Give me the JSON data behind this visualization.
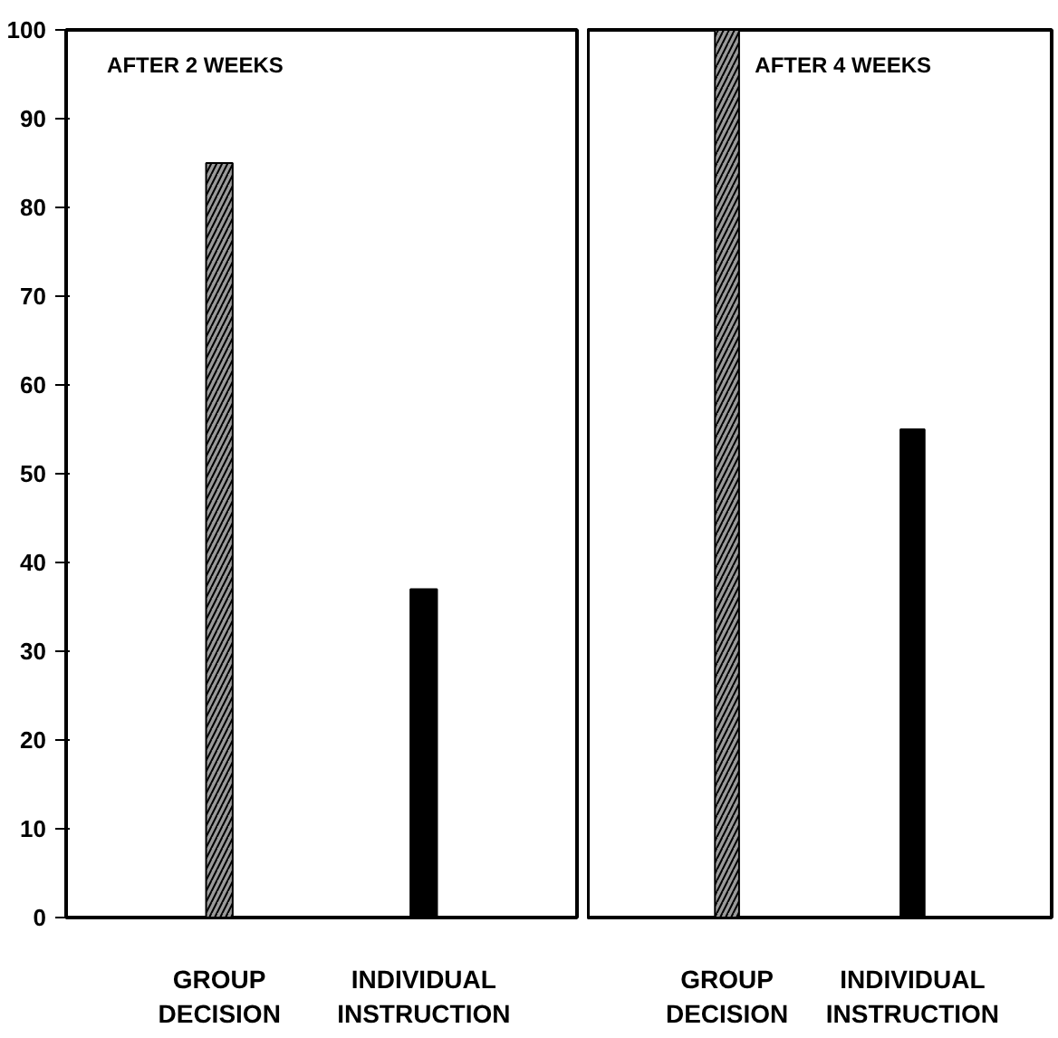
{
  "chart_data": [
    {
      "type": "bar",
      "annotations": [
        "AFTER 2 WEEKS"
      ],
      "categories": [
        "GROUP DECISION",
        "INDIVIDUAL INSTRUCTION"
      ],
      "values": [
        85,
        37
      ],
      "colors": [
        "#9a9a9a",
        "#000000"
      ],
      "ylim": [
        0,
        100
      ],
      "yticks": [
        0,
        10,
        20,
        30,
        40,
        50,
        60,
        70,
        80,
        90,
        100
      ],
      "grid": false
    },
    {
      "type": "bar",
      "annotations": [
        "AFTER 4 WEEKS"
      ],
      "categories": [
        "GROUP DECISION",
        "INDIVIDUAL INSTRUCTION"
      ],
      "values": [
        100,
        55
      ],
      "colors": [
        "#9a9a9a",
        "#000000"
      ],
      "ylim": [
        0,
        100
      ],
      "yticks": [
        0,
        10,
        20,
        30,
        40,
        50,
        60,
        70,
        80,
        90,
        100
      ],
      "grid": false,
      "tick_labels": "x"
    }
  ]
}
